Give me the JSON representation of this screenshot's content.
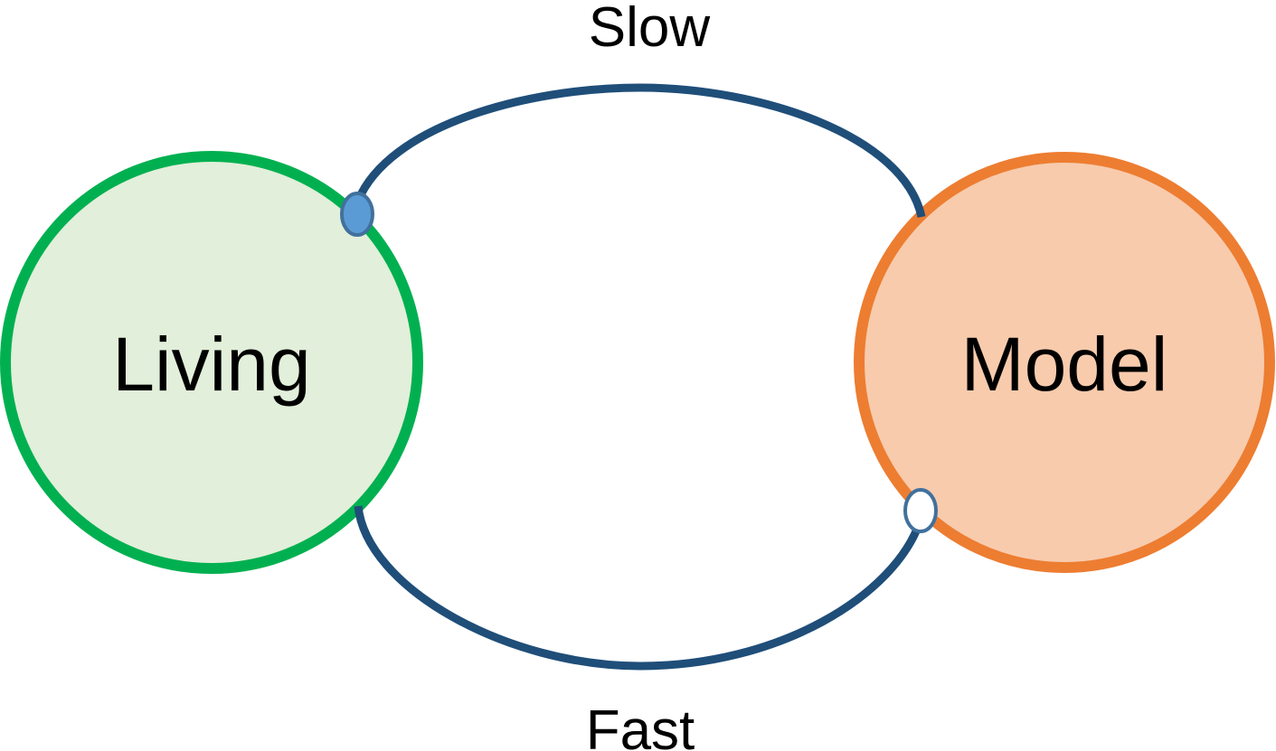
{
  "labels": {
    "slow": "Slow",
    "fast": "Fast",
    "living": "Living",
    "model": "Model"
  },
  "colors": {
    "living_stroke": "#00B050",
    "living_fill": "#E2EFDA",
    "model_stroke": "#ED7D31",
    "model_fill": "#F8CBAD",
    "arc": "#1F4E79",
    "dot_filled": "#5B9BD5",
    "dot_outline": "#41719C",
    "dot_empty": "#FFFFFF"
  }
}
